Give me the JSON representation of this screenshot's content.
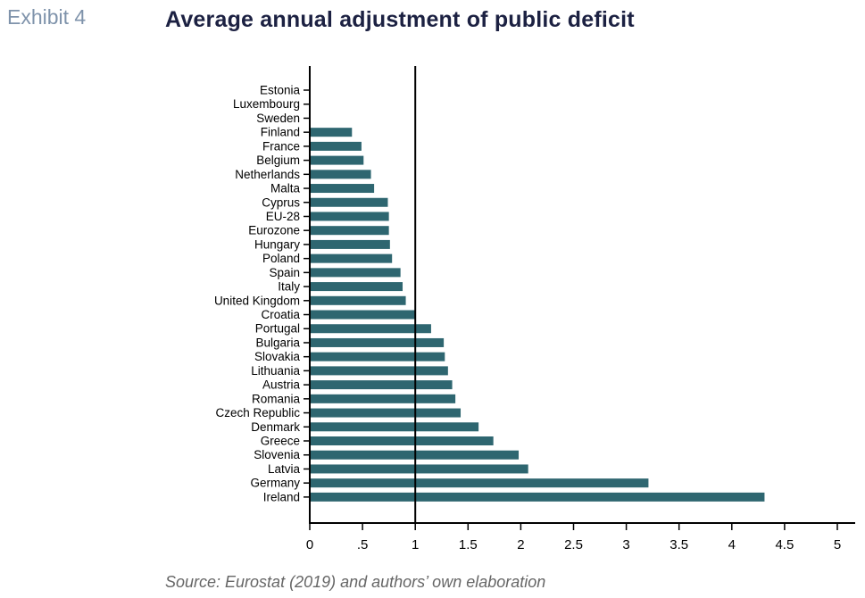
{
  "header": {
    "exhibit": "Exhibit 4",
    "title": "Average annual adjustment of public deficit"
  },
  "footer": {
    "source": "Source: Eurostat (2019) and authors’ own elaboration"
  },
  "chart_data": {
    "type": "bar",
    "orientation": "horizontal",
    "title": "Average annual adjustment of public deficit",
    "xlabel": "",
    "ylabel": "",
    "xlim": [
      0,
      5
    ],
    "xticks": [
      0,
      0.5,
      1,
      1.5,
      2,
      2.5,
      3,
      3.5,
      4,
      4.5,
      5
    ],
    "xtick_labels": [
      "0",
      ".5",
      "1",
      "1.5",
      "2",
      "2.5",
      "3",
      "3.5",
      "4",
      "4.5",
      "5"
    ],
    "reference_line": 1,
    "bar_color": "#2e6670",
    "categories": [
      "Estonia",
      "Luxembourg",
      "Sweden",
      "Finland",
      "France",
      "Belgium",
      "Netherlands",
      "Malta",
      "Cyprus",
      "EU-28",
      "Eurozone",
      "Hungary",
      "Poland",
      "Spain",
      "Italy",
      "United Kingdom",
      "Croatia",
      "Portugal",
      "Bulgaria",
      "Slovakia",
      "Lithuania",
      "Austria",
      "Romania",
      "Czech Republic",
      "Denmark",
      "Greece",
      "Slovenia",
      "Latvia",
      "Germany",
      "Ireland"
    ],
    "values": [
      0,
      0,
      0,
      0.4,
      0.49,
      0.51,
      0.58,
      0.61,
      0.74,
      0.75,
      0.75,
      0.76,
      0.78,
      0.86,
      0.88,
      0.91,
      1.0,
      1.15,
      1.27,
      1.28,
      1.31,
      1.35,
      1.38,
      1.43,
      1.6,
      1.74,
      1.98,
      2.07,
      3.21,
      4.31
    ]
  }
}
